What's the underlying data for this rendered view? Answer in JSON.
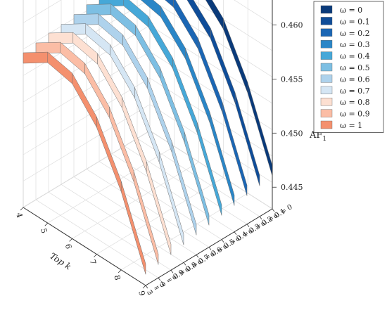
{
  "chart_data": {
    "type": "3d-ribbon",
    "x": {
      "label": "Top k",
      "ticks": [
        "4",
        "5",
        "6",
        "7",
        "8",
        "9"
      ],
      "range": [
        4,
        9
      ]
    },
    "y": {
      "label": "",
      "ticks": [
        "ω = 0",
        "ω = 0.1",
        "ω = 0.2",
        "ω = 0.3",
        "ω = 0.4",
        "ω = 0.5",
        "ω = 0.6",
        "ω = 0.7",
        "ω = 0.8",
        "ω = 0.9",
        "ω = 1"
      ]
    },
    "z": {
      "label": "AF",
      "label_sub": "1",
      "ticks": [
        "0.445",
        "0.450",
        "0.455",
        "0.460"
      ],
      "range": [
        0.443,
        0.4625
      ]
    },
    "legend": {
      "placement": "top-right",
      "entries": [
        "ω = 0",
        "ω = 0.1",
        "ω = 0.2",
        "ω = 0.3",
        "ω = 0.4",
        "ω = 0.5",
        "ω = 0.6",
        "ω = 0.7",
        "ω = 0.8",
        "ω = 0.9",
        "ω = 1"
      ]
    },
    "grid": true,
    "series": [
      {
        "name": "ω = 0",
        "color": "#0a3a7a",
        "values": [
          0.459,
          0.4605,
          0.46,
          0.4577,
          0.4532,
          0.447
        ]
      },
      {
        "name": "ω = 0.1",
        "color": "#0f4d99",
        "values": [
          0.4588,
          0.4603,
          0.4598,
          0.4575,
          0.453,
          0.4468
        ]
      },
      {
        "name": "ω = 0.2",
        "color": "#1b66b4",
        "values": [
          0.4587,
          0.4602,
          0.4597,
          0.4573,
          0.4528,
          0.4466
        ]
      },
      {
        "name": "ω = 0.3",
        "color": "#2a86c7",
        "values": [
          0.4585,
          0.46,
          0.4595,
          0.4571,
          0.4526,
          0.4464
        ]
      },
      {
        "name": "ω = 0.4",
        "color": "#46a8d8",
        "values": [
          0.4583,
          0.4598,
          0.4593,
          0.4569,
          0.4524,
          0.4462
        ]
      },
      {
        "name": "ω = 0.5",
        "color": "#7dbfe3",
        "values": [
          0.4582,
          0.4597,
          0.4592,
          0.4567,
          0.4522,
          0.446
        ]
      },
      {
        "name": "ω = 0.6",
        "color": "#aed2ec",
        "values": [
          0.458,
          0.4595,
          0.459,
          0.4565,
          0.452,
          0.4458
        ]
      },
      {
        "name": "ω = 0.7",
        "color": "#d5e6f4",
        "values": [
          0.4578,
          0.4593,
          0.4588,
          0.4563,
          0.4518,
          0.4456
        ]
      },
      {
        "name": "ω = 0.8",
        "color": "#fde0d2",
        "values": [
          0.4577,
          0.4592,
          0.4587,
          0.4561,
          0.4516,
          0.4454
        ]
      },
      {
        "name": "ω = 0.9",
        "color": "#fbbda5",
        "values": [
          0.4575,
          0.459,
          0.4585,
          0.4559,
          0.4514,
          0.4452
        ]
      },
      {
        "name": "ω = 1",
        "color": "#f4906e",
        "values": [
          0.4573,
          0.4588,
          0.4583,
          0.4557,
          0.4512,
          0.445
        ]
      }
    ]
  }
}
